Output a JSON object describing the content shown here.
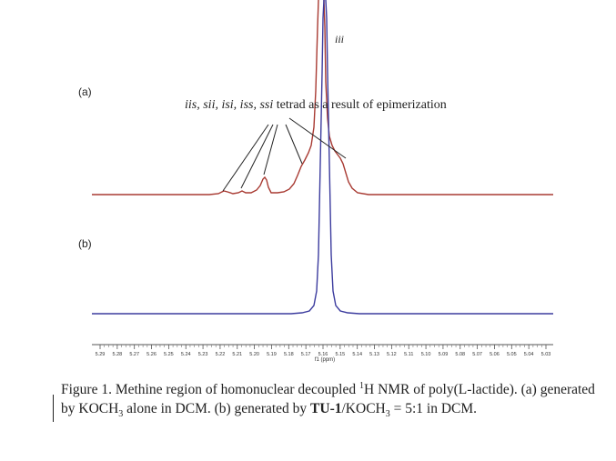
{
  "figure": {
    "panel_a_label": "(a)",
    "panel_b_label": "(b)",
    "peak_label": "iii",
    "annotation": {
      "tetrads": "iis, sii, isi, iss, ssi",
      "text": " tetrad as a result of epimerization"
    },
    "x_axis": {
      "ticks": [
        "5.29",
        "5.28",
        "5.27",
        "5.26",
        "5.25",
        "5.24",
        "5.23",
        "5.22",
        "5.21",
        "5.20",
        "5.19",
        "5.18",
        "5.17",
        "5.16",
        "5.15",
        "5.14",
        "5.13",
        "5.12",
        "5.11",
        "5.10",
        "5.09",
        "5.08",
        "5.07",
        "5.06",
        "5.05",
        "5.04",
        "5.03"
      ],
      "label": "f1 (ppm)",
      "range": [
        5.295,
        5.025
      ]
    },
    "colors": {
      "trace_a": "#a83a32",
      "trace_b": "#3b3b9e",
      "axis": "#555555"
    }
  },
  "caption": {
    "part1": "Figure 1. Methine region of homonuclear decoupled ",
    "sup": "1",
    "part2": "H NMR of poly(L-lactide). (a) generated by KOCH",
    "sub1": "3",
    "part3": " alone in DCM. (b) generated by ",
    "bold": "TU-1",
    "part4": "/KOCH",
    "sub2": "3",
    "part5": " = 5:1 in DCM."
  }
}
